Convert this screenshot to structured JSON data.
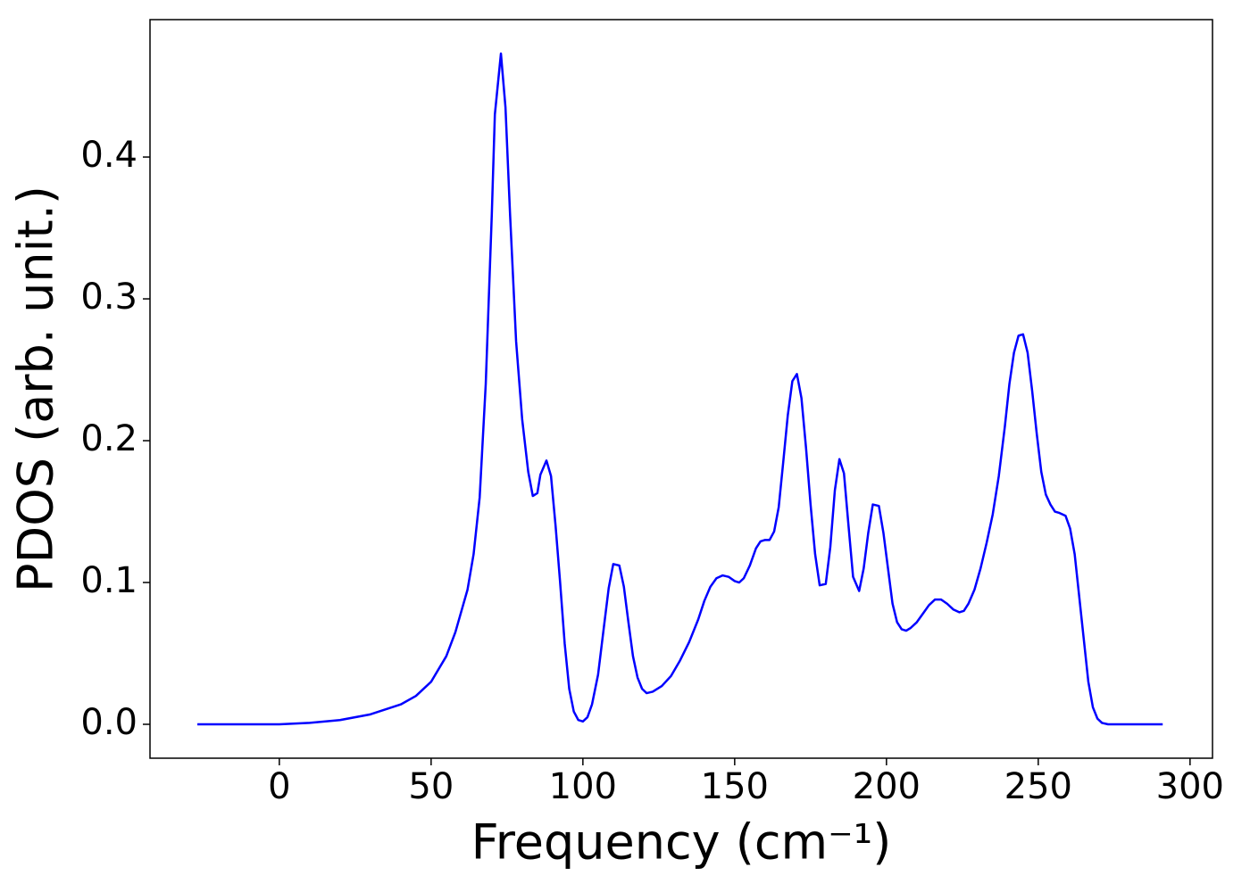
{
  "chart_data": {
    "type": "line",
    "xlabel": "Frequency (cm⁻¹)",
    "ylabel": "PDOS (arb. unit.)",
    "x": [
      -27,
      0,
      10,
      20,
      30,
      40,
      45,
      50,
      55,
      58,
      60,
      62,
      64,
      66,
      68,
      70,
      71,
      73,
      74.5,
      76,
      78,
      80,
      82,
      83.5,
      85,
      86,
      88,
      89.5,
      91,
      92.5,
      94,
      95.5,
      97,
      98.5,
      100,
      101.5,
      103,
      105,
      107,
      108.5,
      110,
      112,
      113.5,
      115,
      116.5,
      118,
      119.5,
      121,
      123,
      126,
      129,
      132,
      135,
      138,
      140,
      142,
      144,
      146,
      148,
      150,
      151.5,
      153,
      155,
      157,
      158.5,
      160,
      161.5,
      163,
      164.5,
      166,
      167.5,
      169,
      170.5,
      172,
      173.5,
      175,
      176.5,
      178,
      180,
      181.5,
      183,
      184.5,
      186,
      187.5,
      189,
      191,
      192.5,
      194,
      195.5,
      197.5,
      199,
      200.5,
      202,
      203.5,
      205,
      206.5,
      208,
      210,
      212,
      214,
      216,
      218,
      220,
      222,
      224,
      225.5,
      227,
      229,
      231,
      233,
      235,
      237,
      239,
      240.5,
      242,
      243.5,
      245,
      246.5,
      248,
      249.5,
      251,
      252.5,
      254,
      255.5,
      257,
      259,
      260.5,
      262,
      263.5,
      265,
      266.5,
      268,
      269.5,
      271,
      273,
      291
    ],
    "series": [
      {
        "name": "PDOS",
        "color": "#0000ff",
        "values": [
          0,
          0,
          0.001,
          0.003,
          0.007,
          0.014,
          0.02,
          0.03,
          0.048,
          0.065,
          0.08,
          0.095,
          0.12,
          0.16,
          0.24,
          0.36,
          0.43,
          0.473,
          0.435,
          0.36,
          0.27,
          0.215,
          0.178,
          0.161,
          0.163,
          0.176,
          0.186,
          0.175,
          0.14,
          0.1,
          0.057,
          0.025,
          0.009,
          0.003,
          0.002,
          0.005,
          0.014,
          0.035,
          0.07,
          0.096,
          0.113,
          0.112,
          0.097,
          0.072,
          0.048,
          0.033,
          0.025,
          0.022,
          0.023,
          0.027,
          0.034,
          0.045,
          0.058,
          0.074,
          0.087,
          0.097,
          0.103,
          0.105,
          0.104,
          0.101,
          0.1,
          0.103,
          0.112,
          0.124,
          0.129,
          0.13,
          0.13,
          0.136,
          0.153,
          0.185,
          0.218,
          0.242,
          0.247,
          0.23,
          0.195,
          0.155,
          0.12,
          0.098,
          0.099,
          0.125,
          0.165,
          0.187,
          0.177,
          0.14,
          0.104,
          0.094,
          0.11,
          0.135,
          0.155,
          0.154,
          0.135,
          0.11,
          0.085,
          0.072,
          0.067,
          0.066,
          0.068,
          0.072,
          0.078,
          0.084,
          0.088,
          0.088,
          0.085,
          0.081,
          0.079,
          0.08,
          0.085,
          0.095,
          0.11,
          0.128,
          0.148,
          0.175,
          0.21,
          0.24,
          0.262,
          0.274,
          0.275,
          0.262,
          0.235,
          0.205,
          0.178,
          0.162,
          0.155,
          0.15,
          0.149,
          0.147,
          0.138,
          0.12,
          0.09,
          0.06,
          0.03,
          0.012,
          0.004,
          0.001,
          0,
          0
        ]
      }
    ],
    "xlim": [
      -42.6,
      307.4
    ],
    "ylim": [
      -0.0239,
      0.4969
    ],
    "xticks": [
      0,
      50,
      100,
      150,
      200,
      250,
      300
    ],
    "yticks": [
      {
        "value": 0,
        "label": "0.0"
      },
      0.1,
      0.2,
      0.3,
      0.4
    ],
    "grid": false
  }
}
